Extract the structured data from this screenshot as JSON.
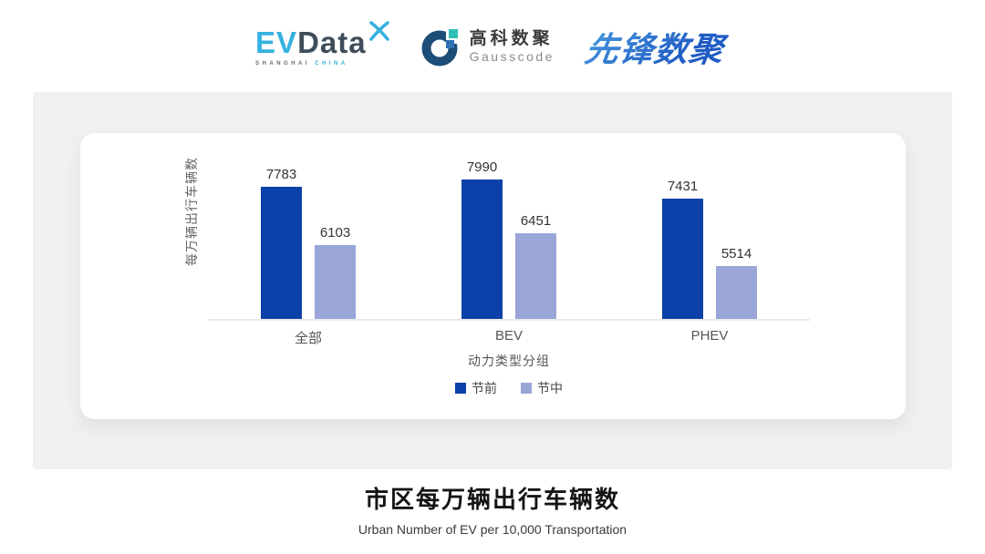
{
  "header": {
    "evdata": {
      "ev": "EV",
      "data": "Data",
      "sub_left": "SHANGHAI",
      "sub_right": "CHINA"
    },
    "gausscode": {
      "cn": "高科数聚",
      "en": "Gausscode"
    },
    "pioneer": {
      "text": "先锋数聚"
    }
  },
  "colors": {
    "series_pre": "#0b41a8",
    "series_mid": "#9aa5d8",
    "evdata_blue": "#35b1e0",
    "evdata_dark": "#3f4d5a",
    "gauss_navy": "#1d4e78",
    "gauss_teal": "#2fbfb4",
    "gauss_blue": "#2e74b5",
    "axis_line": "#e9e9e9",
    "panel_gray": "#f0f0f0"
  },
  "chart_data": {
    "type": "bar",
    "title": "",
    "categories": [
      "全部",
      "BEV",
      "PHEV"
    ],
    "series": [
      {
        "name": "节前",
        "color": "#0b41a8",
        "values": [
          7783,
          7990,
          7431
        ]
      },
      {
        "name": "节中",
        "color": "#9aa5d8",
        "values": [
          6103,
          6451,
          5514
        ]
      }
    ],
    "xlabel": "动力类型分组",
    "ylabel": "每万辆出行车辆数",
    "ylim": [
      4000,
      8500
    ],
    "grid": false,
    "legend_position": "bottom",
    "value_labels": true
  },
  "footer": {
    "title": "市区每万辆出行车辆数",
    "subtitle": "Urban Number of EV per 10,000 Transportation"
  }
}
